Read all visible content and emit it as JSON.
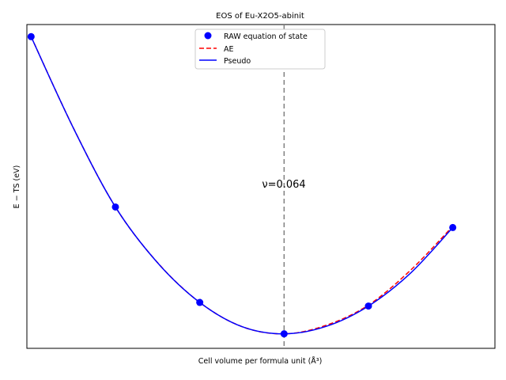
{
  "chart_data": {
    "type": "line",
    "title": "EOS of Eu-X2O5-abinit",
    "xlabel": "Cell volume per formula unit (Å³)",
    "ylabel": "E − TS (eV)",
    "annotation": "ν=0.064",
    "legend_placement": "top-center",
    "grid": false,
    "x_ticks_shown": false,
    "y_ticks_shown": false,
    "vline_x": 0,
    "xlim": [
      -3.05,
      2.5
    ],
    "ylim": [
      -0.0012,
      0.0256
    ],
    "raw_points": {
      "name": "RAW equation of state",
      "color": "#0000ff",
      "x": [
        -3,
        -2,
        -1,
        0,
        1,
        2
      ],
      "y": [
        0.0246,
        0.0105,
        0.0026,
        0.0,
        0.0023,
        0.0088
      ]
    },
    "series": [
      {
        "name": "AE",
        "color": "#ff0000",
        "style": "dashed",
        "x": [
          -3,
          -2.5,
          -2,
          -1.5,
          -1,
          -0.5,
          0,
          0.5,
          1,
          1.5,
          2
        ],
        "y": [
          0.0246,
          0.01706,
          0.0105,
          0.00589,
          0.0026,
          0.0006,
          0.0,
          0.00071,
          0.00238,
          0.00527,
          0.0089
        ]
      },
      {
        "name": "Pseudo",
        "color": "#0000ff",
        "style": "solid",
        "x": [
          -3,
          -2.5,
          -2,
          -1.5,
          -1,
          -0.5,
          0,
          0.5,
          1,
          1.5,
          2
        ],
        "y": [
          0.0246,
          0.01705,
          0.0105,
          0.00588,
          0.0026,
          0.0006,
          0.0,
          0.00062,
          0.0023,
          0.00503,
          0.0088
        ]
      }
    ]
  }
}
